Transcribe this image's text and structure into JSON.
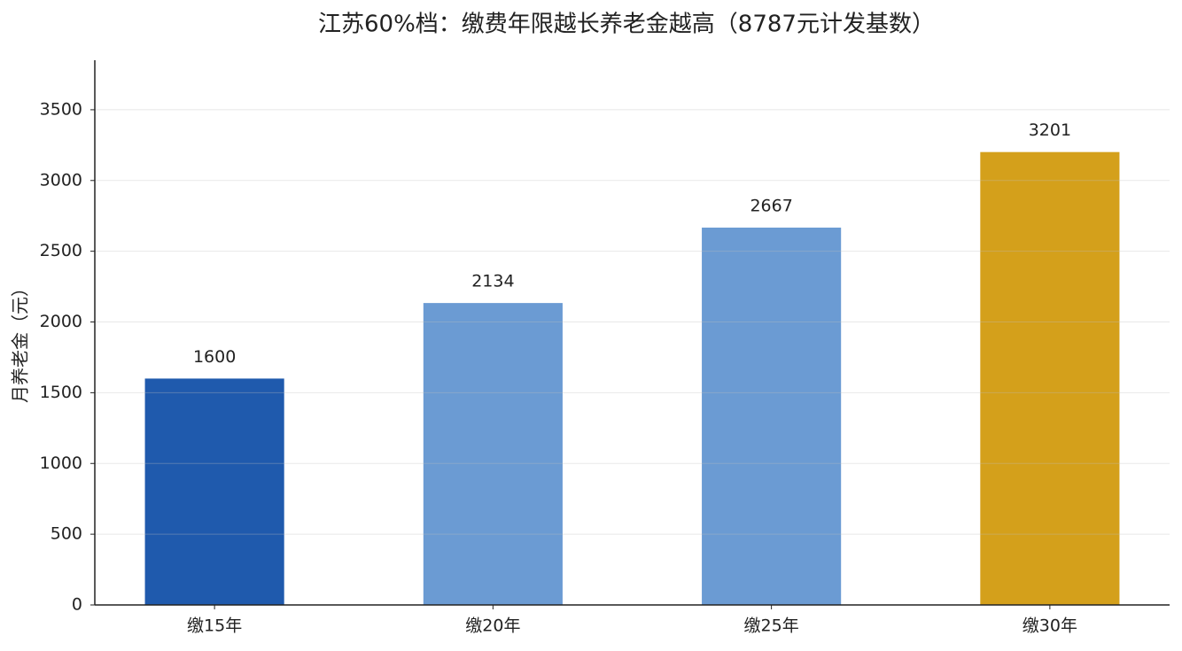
{
  "chart_data": {
    "type": "bar",
    "title": "江苏60%档：缴费年限越长养老金越高（8787元计发基数）",
    "y_label": "月养老金（元）",
    "categories": [
      "缴15年",
      "缴20年",
      "缴25年",
      "缴30年"
    ],
    "values": [
      1600,
      2134,
      2667,
      3201
    ],
    "colors": [
      "#1f5aad",
      "#6b9bd3",
      "#6b9bd3",
      "#d4a01b"
    ],
    "ylim": [
      0,
      3850
    ],
    "yticks": [
      0,
      500,
      1000,
      1500,
      2000,
      2500,
      3000,
      3500
    ],
    "grid": true
  }
}
